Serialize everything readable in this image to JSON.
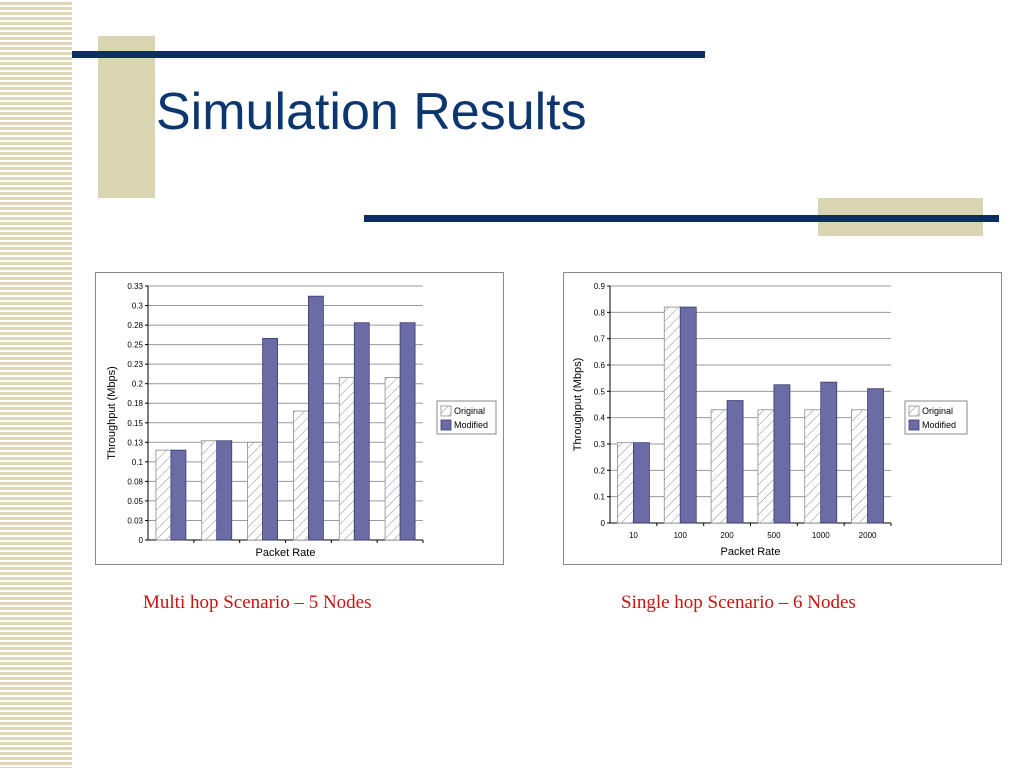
{
  "slide": {
    "title": "Simulation Results"
  },
  "colors": {
    "title": "#0c3670",
    "accent_line": "#0c2e63",
    "accent_block": "#d9d4b2",
    "caption": "#cc1111",
    "modified_bar": "#6b6ba6"
  },
  "captions": {
    "left": "Multi hop Scenario – 5 Nodes",
    "right": "Single hop Scenario – 6 Nodes"
  },
  "chart_data": [
    {
      "type": "bar",
      "xlabel": "Packet Rate",
      "ylabel": "Throughput (Mbps)",
      "yticks": [
        "0",
        "0.03",
        "0.05",
        "0.08",
        "0.1",
        "0.13",
        "0.15",
        "0.18",
        "0.2",
        "0.23",
        "0.25",
        "0.28",
        "0.3",
        "0.33"
      ],
      "ylim": [
        0,
        0.325
      ],
      "categories": [
        "",
        "",
        "",
        "",
        "",
        ""
      ],
      "series": [
        {
          "name": "Original",
          "values": [
            0.115,
            0.127,
            0.125,
            0.165,
            0.208,
            0.208
          ]
        },
        {
          "name": "Modified",
          "values": [
            0.115,
            0.127,
            0.258,
            0.312,
            0.278,
            0.278
          ]
        }
      ],
      "legend": "right",
      "grid": true
    },
    {
      "type": "bar",
      "xlabel": "Packet Rate",
      "ylabel": "Throughput (Mbps)",
      "yticks": [
        "0",
        "0.1",
        "0.2",
        "0.3",
        "0.4",
        "0.5",
        "0.6",
        "0.7",
        "0.8",
        "0.9"
      ],
      "ylim": [
        0,
        0.9
      ],
      "categories": [
        "10",
        "100",
        "200",
        "500",
        "1000",
        "2000"
      ],
      "series": [
        {
          "name": "Original",
          "values": [
            0.305,
            0.82,
            0.43,
            0.43,
            0.43,
            0.43
          ]
        },
        {
          "name": "Modified",
          "values": [
            0.305,
            0.82,
            0.465,
            0.525,
            0.535,
            0.51
          ]
        }
      ],
      "legend": "right",
      "grid": true
    }
  ]
}
